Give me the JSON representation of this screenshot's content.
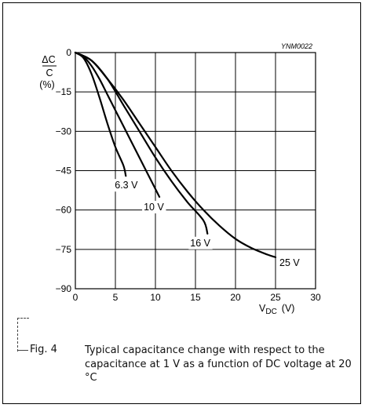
{
  "chart_data": {
    "type": "line",
    "ylabel": {
      "numerator": "ΔC",
      "denominator": "C",
      "unit": "(%)"
    },
    "xlabel": {
      "symbol": "V",
      "subscript": "DC",
      "unit": "(V)"
    },
    "xlim": [
      0,
      30
    ],
    "ylim": [
      -90,
      0
    ],
    "xticks": [
      0,
      5,
      10,
      15,
      20,
      25,
      30
    ],
    "yticks": [
      0,
      -15,
      -30,
      -45,
      -60,
      -75,
      -90
    ],
    "grid": true,
    "series": [
      {
        "name": "6.3 V",
        "points": [
          [
            0,
            0
          ],
          [
            1,
            -2
          ],
          [
            2,
            -8
          ],
          [
            3,
            -17
          ],
          [
            4,
            -27
          ],
          [
            5,
            -36
          ],
          [
            6,
            -43
          ],
          [
            6.3,
            -47
          ]
        ]
      },
      {
        "name": "10 V",
        "points": [
          [
            0,
            0
          ],
          [
            1,
            -1.5
          ],
          [
            2,
            -5
          ],
          [
            3,
            -10
          ],
          [
            4,
            -16
          ],
          [
            5,
            -22
          ],
          [
            6,
            -28
          ],
          [
            7,
            -34
          ],
          [
            8,
            -40
          ],
          [
            9,
            -46
          ],
          [
            10,
            -52
          ],
          [
            10.5,
            -55
          ]
        ]
      },
      {
        "name": "16 V",
        "points": [
          [
            0,
            0
          ],
          [
            2,
            -3
          ],
          [
            4,
            -10
          ],
          [
            6,
            -20
          ],
          [
            8,
            -30
          ],
          [
            10,
            -40
          ],
          [
            12,
            -49
          ],
          [
            14,
            -57
          ],
          [
            16,
            -64
          ],
          [
            16.5,
            -69
          ]
        ]
      },
      {
        "name": "25 V",
        "points": [
          [
            0,
            0
          ],
          [
            2,
            -3
          ],
          [
            4,
            -10
          ],
          [
            6,
            -18
          ],
          [
            8,
            -27
          ],
          [
            10,
            -36
          ],
          [
            12,
            -45
          ],
          [
            14,
            -53
          ],
          [
            16,
            -60
          ],
          [
            18,
            -66
          ],
          [
            20,
            -71
          ],
          [
            22,
            -74.5
          ],
          [
            24,
            -77
          ],
          [
            25,
            -78
          ]
        ]
      }
    ],
    "annotation": "YNM0022"
  },
  "caption": {
    "fig_number": "Fig. 4",
    "text": "Typical capacitance change with respect to the capacitance at 1 V as a function of DC voltage at 20 °C"
  }
}
